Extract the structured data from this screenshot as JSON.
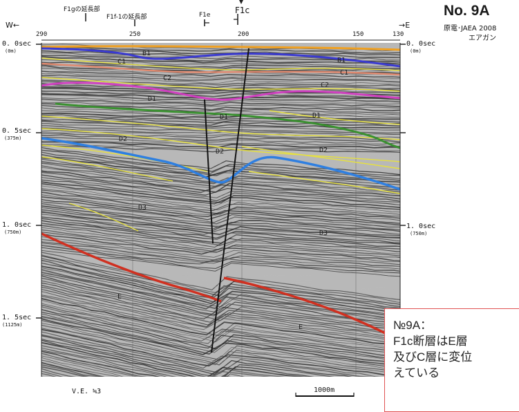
{
  "header": {
    "figure_number": "No. 9A",
    "source": "原電･JAEA 2008",
    "method": "エアガン",
    "west": "W←",
    "east": "→E"
  },
  "fault_labels": {
    "f1g": "F1gの延長部",
    "f1f1": "F1f-1の延長部",
    "f1e": "F1e",
    "f1c": "F1c"
  },
  "top_axis": {
    "ticks": [
      "290",
      "250",
      "200",
      "150",
      "130"
    ]
  },
  "time_axis": {
    "left": [
      {
        "time": "0. 0sec",
        "depth": "(0m)"
      },
      {
        "time": "0. 5sec",
        "depth": "(375m)"
      },
      {
        "time": "1. 0sec",
        "depth": "(750m)"
      },
      {
        "time": "1. 5sec",
        "depth": "(1125m)"
      }
    ],
    "right": [
      {
        "time": "0. 0sec",
        "depth": "(0m)"
      },
      {
        "time": "1. 0sec",
        "depth": "(750m)"
      }
    ]
  },
  "layer_labels": {
    "b1": "B1",
    "b1r": "B1",
    "c1": "C1",
    "c1r": "C1",
    "c2": "C2",
    "c2r": "C2",
    "d1": "D1",
    "d1c": "D1",
    "d1r": "D1",
    "d2": "D2",
    "d2c": "D2",
    "d2r": "D2",
    "d3": "D3",
    "d3r": "D3",
    "e1": "E",
    "e2": "E"
  },
  "colors": {
    "orange_horizon": "#f0a020",
    "blue_horizon": "#3a3ad0",
    "salmon_horizon": "#e08a70",
    "magenta_horizon": "#d040c0",
    "green_horizon": "#3a9030",
    "yellow_horizon": "#e6e040",
    "cyan_horizon": "#2f7fe0",
    "red_horizon": "#d03020",
    "note_border": "#e05050"
  },
  "footer": {
    "vertical_exaggeration": "V.E. ≒3",
    "scale": "1000m"
  },
  "note": {
    "title": "№9A：",
    "line1": "F1c断層はE層",
    "line2": "及びC層に変位",
    "line3": "えている"
  }
}
